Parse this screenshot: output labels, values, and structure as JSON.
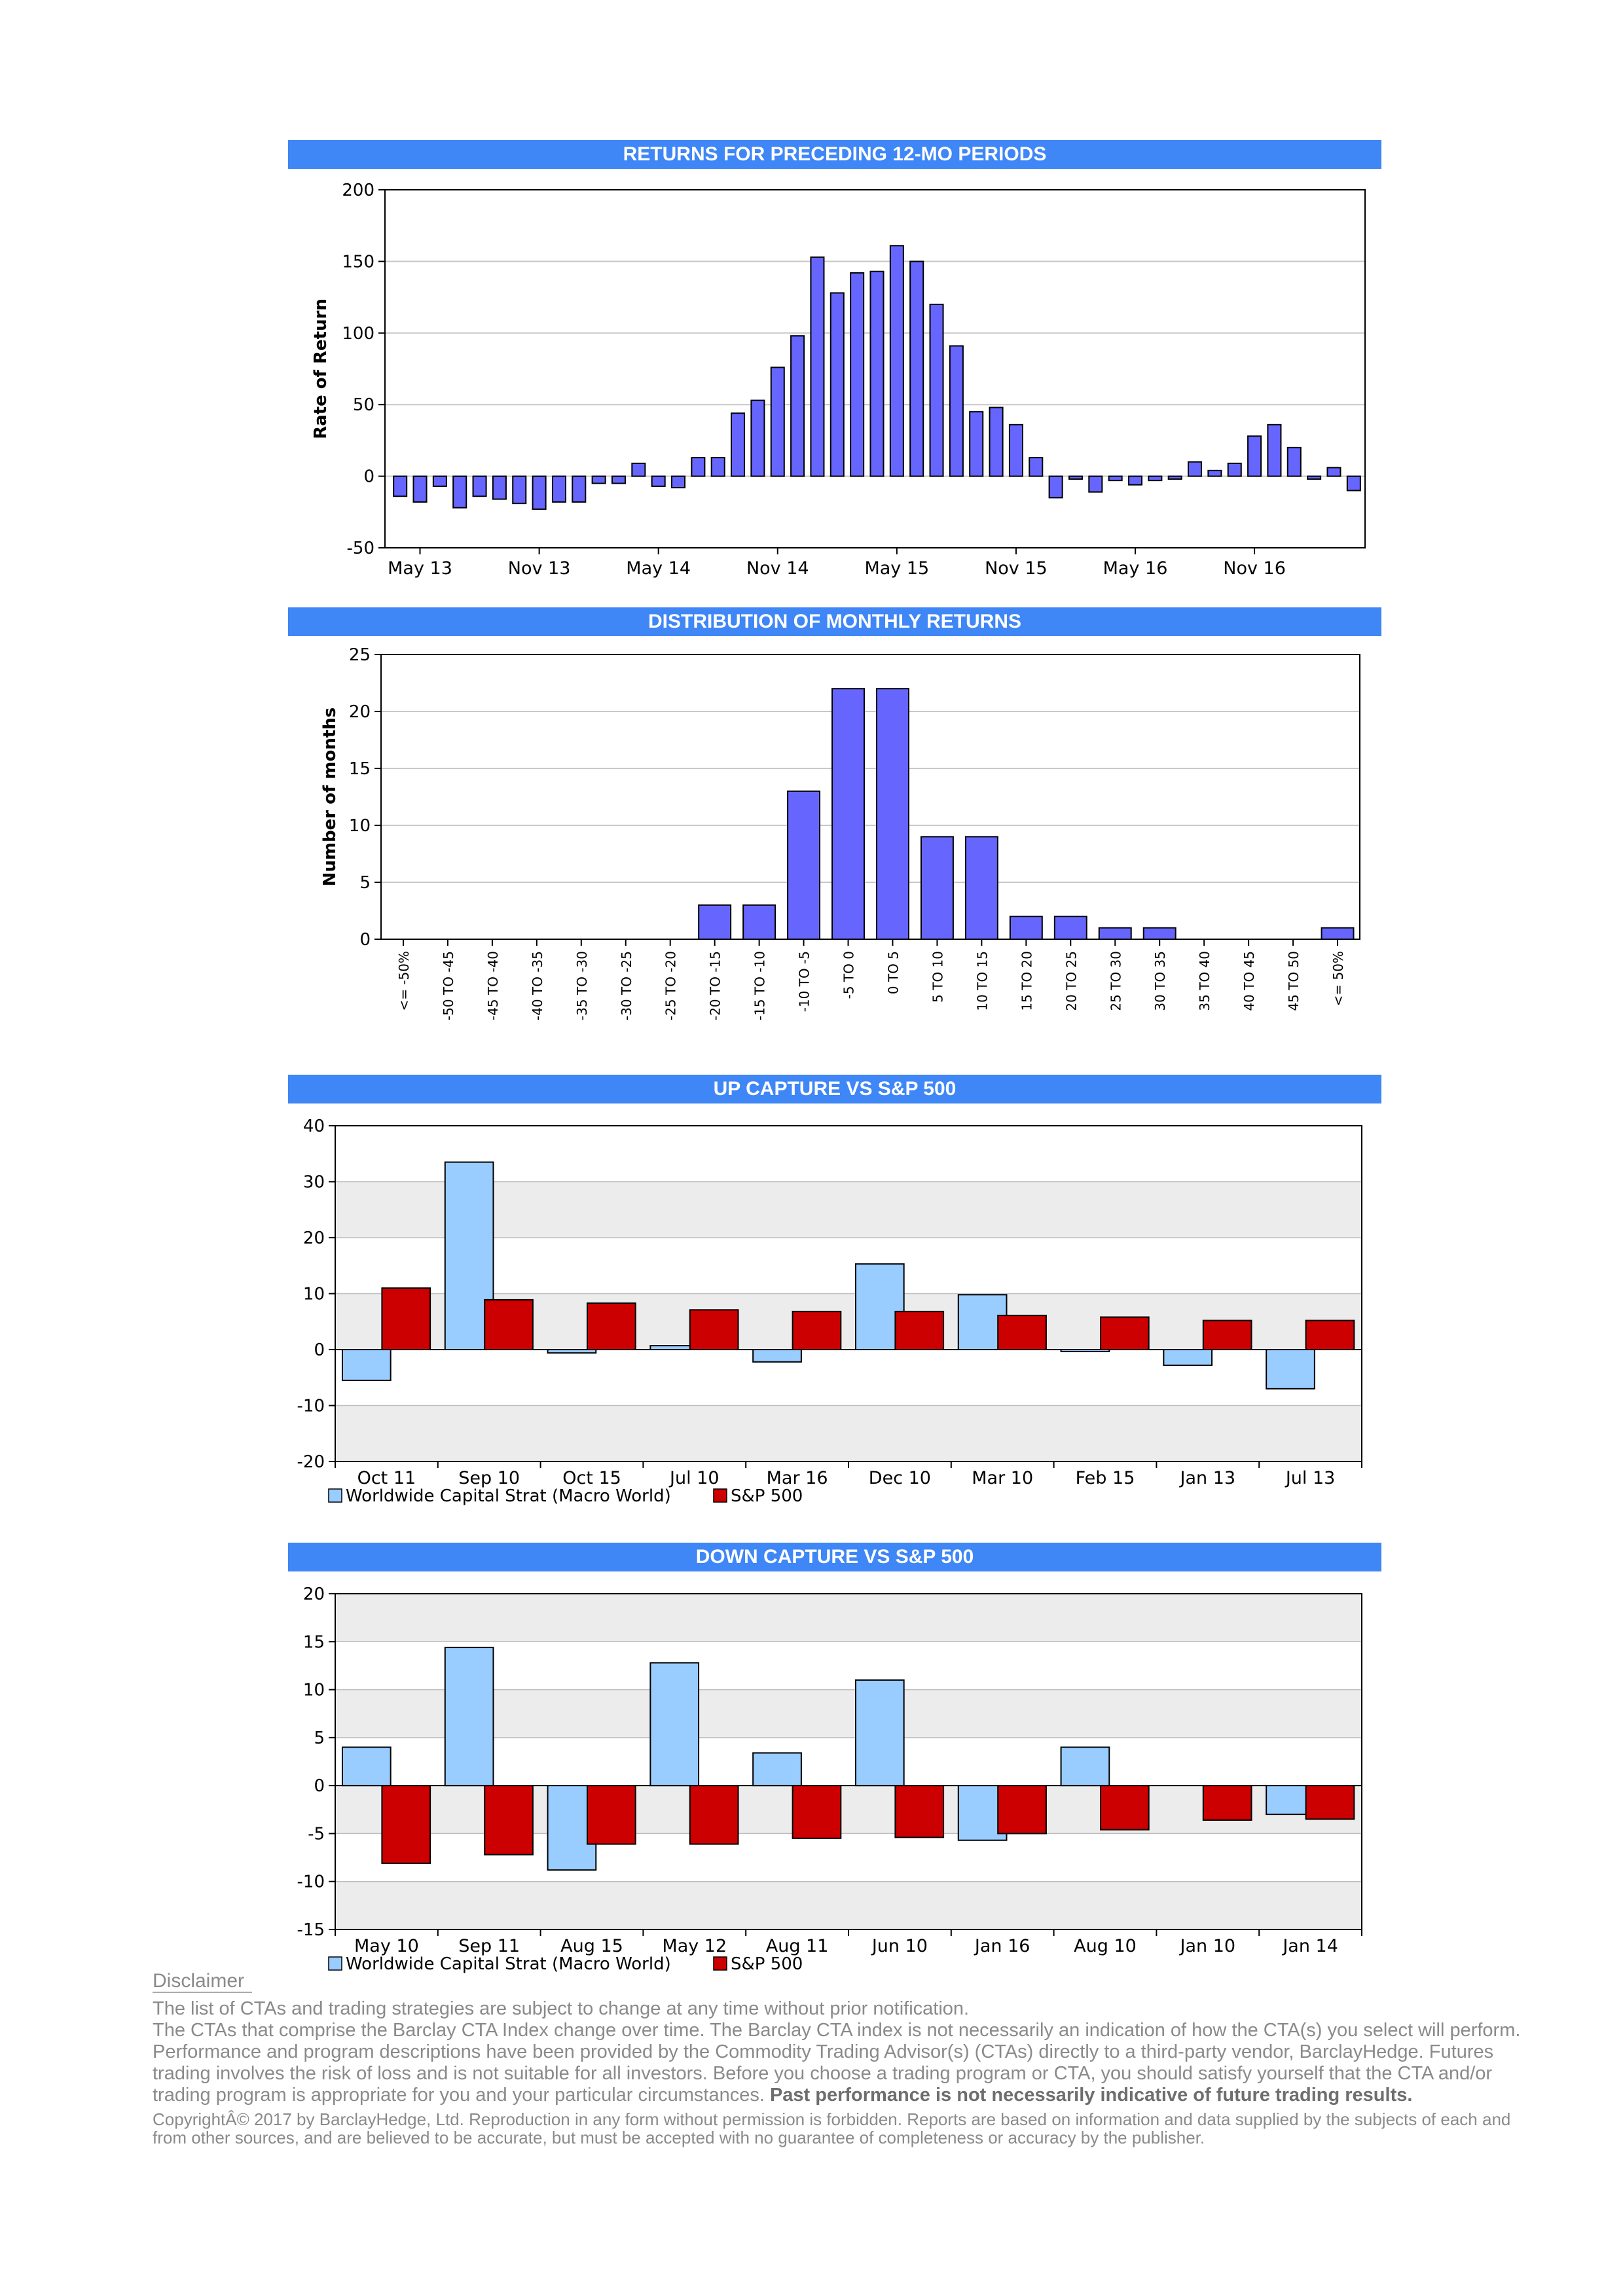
{
  "colors": {
    "banner": "#3f86f7",
    "bar_purple": "#6666ff",
    "bar_lightblue": "#99ccff",
    "bar_red": "#cc0000",
    "grid_band": "#ececec"
  },
  "chart_data": [
    {
      "type": "bar",
      "title": "RETURNS FOR PRECEDING 12-MO PERIODS",
      "xlabel": "",
      "ylabel": "Rate of Return",
      "ylim": [
        -50,
        200
      ],
      "yticks": [
        -50,
        0,
        50,
        100,
        150,
        200
      ],
      "xtick_labels": [
        "May 13",
        "Nov 13",
        "May 14",
        "Nov 14",
        "May 15",
        "Nov 15",
        "May 16",
        "Nov 16"
      ],
      "xtick_indices": [
        1,
        7,
        13,
        19,
        25,
        31,
        37,
        43
      ],
      "grid": true,
      "values": [
        -14,
        -18,
        -7,
        -22,
        -14,
        -16,
        -19,
        -23,
        -18,
        -18,
        -5,
        -5,
        9,
        -7,
        -8,
        13,
        13,
        44,
        53,
        76,
        98,
        153,
        128,
        142,
        143,
        161,
        150,
        120,
        91,
        45,
        48,
        36,
        13,
        -15,
        -2,
        -11,
        -3,
        -6,
        -3,
        -2,
        10,
        4,
        9,
        28,
        36,
        20,
        -2,
        6,
        -10
      ]
    },
    {
      "type": "bar",
      "title": "DISTRIBUTION OF MONTHLY RETURNS",
      "xlabel": "",
      "ylabel": "Number of months",
      "ylim": [
        0,
        25
      ],
      "yticks": [
        0,
        5,
        10,
        15,
        20,
        25
      ],
      "grid": true,
      "categories": [
        "<= -50%",
        "-50 TO -45",
        "-45 TO -40",
        "-40 TO -35",
        "-35 TO -30",
        "-30 TO -25",
        "-25 TO -20",
        "-20 TO -15",
        "-15 TO -10",
        "-10 TO -5",
        "-5 TO 0",
        "0 TO 5",
        "5 TO 10",
        "10 TO 15",
        "15 TO 20",
        "20 TO 25",
        "25 TO 30",
        "30 TO 35",
        "35 TO 40",
        "40 TO 45",
        "45 TO 50",
        "<= 50%"
      ],
      "values": [
        0,
        0,
        0,
        0,
        0,
        0,
        0,
        3,
        3,
        13,
        22,
        22,
        9,
        9,
        2,
        2,
        1,
        1,
        0,
        0,
        0,
        1
      ]
    },
    {
      "type": "bar",
      "title": "UP CAPTURE VS S&P 500",
      "ylim": [
        -20,
        40
      ],
      "yticks": [
        -20,
        -10,
        0,
        10,
        20,
        30,
        40
      ],
      "legend": "bottom-left",
      "categories": [
        "Oct 11",
        "Sep 10",
        "Oct 15",
        "Jul 10",
        "Mar 16",
        "Dec 10",
        "Mar 10",
        "Feb 15",
        "Jan 13",
        "Jul 13"
      ],
      "series": [
        {
          "name": "Worldwide Capital Strat (Macro World)",
          "values": [
            -5.5,
            33.5,
            -0.6,
            0.7,
            -2.2,
            15.3,
            9.8,
            -0.3,
            -2.8,
            -7.0
          ]
        },
        {
          "name": "S&P 500",
          "values": [
            11.0,
            8.9,
            8.3,
            7.1,
            6.8,
            6.8,
            6.1,
            5.8,
            5.2,
            5.2
          ]
        }
      ]
    },
    {
      "type": "bar",
      "title": "DOWN CAPTURE VS S&P 500",
      "ylim": [
        -15,
        20
      ],
      "yticks": [
        -15,
        -10,
        -5,
        0,
        5,
        10,
        15,
        20
      ],
      "legend": "bottom-left",
      "categories": [
        "May 10",
        "Sep 11",
        "Aug 15",
        "May 12",
        "Aug 11",
        "Jun 10",
        "Jan 16",
        "Aug 10",
        "Jan 10",
        "Jan 14"
      ],
      "series": [
        {
          "name": "Worldwide Capital Strat (Macro World)",
          "values": [
            4.0,
            14.4,
            -8.8,
            12.8,
            3.4,
            11.0,
            -5.7,
            4.0,
            0,
            -3.0
          ]
        },
        {
          "name": "S&P 500",
          "values": [
            -8.1,
            -7.2,
            -6.1,
            -6.1,
            -5.5,
            -5.4,
            -5.0,
            -4.6,
            -3.6,
            -3.5
          ]
        }
      ]
    }
  ],
  "disclaimer": {
    "heading": "Disclaimer",
    "line1": "The list of CTAs and trading strategies are subject to change at any time without prior notification.",
    "line2": "The CTAs that comprise the Barclay CTA Index change over time.  The Barclay CTA index is not necessarily an indication of how the CTA(s) you select will perform.",
    "line3": "Performance and program descriptions have been provided by the Commodity Trading Advisor(s) (CTAs) directly to a third-party vendor, BarclayHedge. Futures trading involves the risk of loss and is not suitable for all investors.  Before you choose a trading program or CTA, you should satisfy yourself that the CTA and/or trading program is appropriate for you and your particular circumstances.",
    "line3_bold": "Past performance is not necessarily indicative of future trading results.",
    "copyright": "CopyrightÂ©  2017 by BarclayHedge, Ltd. Reproduction in any form without permission is forbidden. Reports are based on information and data supplied by the subjects of each and from other sources, and are believed to be accurate, but must be accepted with no guarantee of completeness or accuracy by the publisher."
  }
}
